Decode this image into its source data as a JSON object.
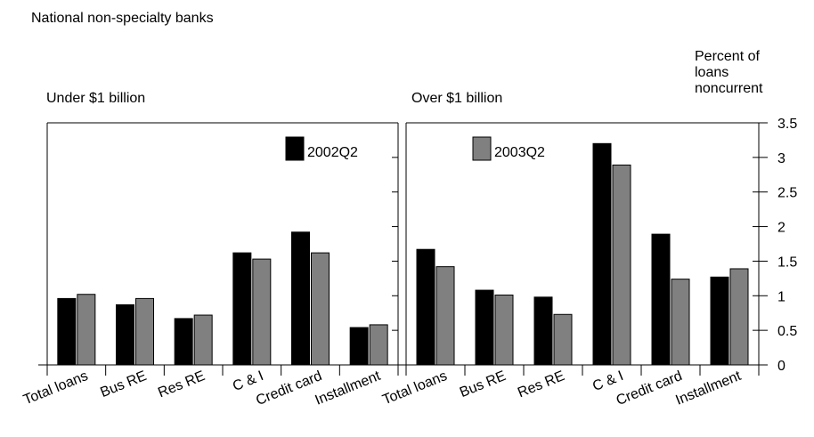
{
  "title": "National non-specialty banks",
  "ylabel": "Percent of\nloans\nnoncurrent",
  "colors": {
    "2002Q2": "#000000",
    "2003Q2": "#808080"
  },
  "chart_data": [
    {
      "type": "bar",
      "title": "Under $1 billion",
      "categories": [
        "Total loans",
        "Bus RE",
        "Res RE",
        "C & I",
        "Credit card",
        "Installment"
      ],
      "series": [
        {
          "name": "2002Q2",
          "values": [
            0.96,
            0.87,
            0.67,
            1.62,
            1.92,
            0.54
          ]
        },
        {
          "name": "2003Q2",
          "values": [
            1.02,
            0.96,
            0.72,
            1.53,
            1.62,
            0.58
          ]
        }
      ],
      "legend": [
        "2002Q2"
      ],
      "ylim": [
        0,
        3.5
      ]
    },
    {
      "type": "bar",
      "title": "Over $1 billion",
      "categories": [
        "Total loans",
        "Bus RE",
        "Res RE",
        "C & I",
        "Credit card",
        "Installment"
      ],
      "series": [
        {
          "name": "2002Q2",
          "values": [
            1.67,
            1.08,
            0.98,
            3.2,
            1.89,
            1.27
          ]
        },
        {
          "name": "2003Q2",
          "values": [
            1.42,
            1.01,
            0.73,
            2.89,
            1.24,
            1.39
          ]
        }
      ],
      "legend": [
        "2003Q2"
      ],
      "ylim": [
        0,
        3.5
      ],
      "yticks": [
        "0",
        "0.5",
        "1",
        "1.5",
        "2",
        "2.5",
        "3",
        "3.5"
      ]
    }
  ]
}
